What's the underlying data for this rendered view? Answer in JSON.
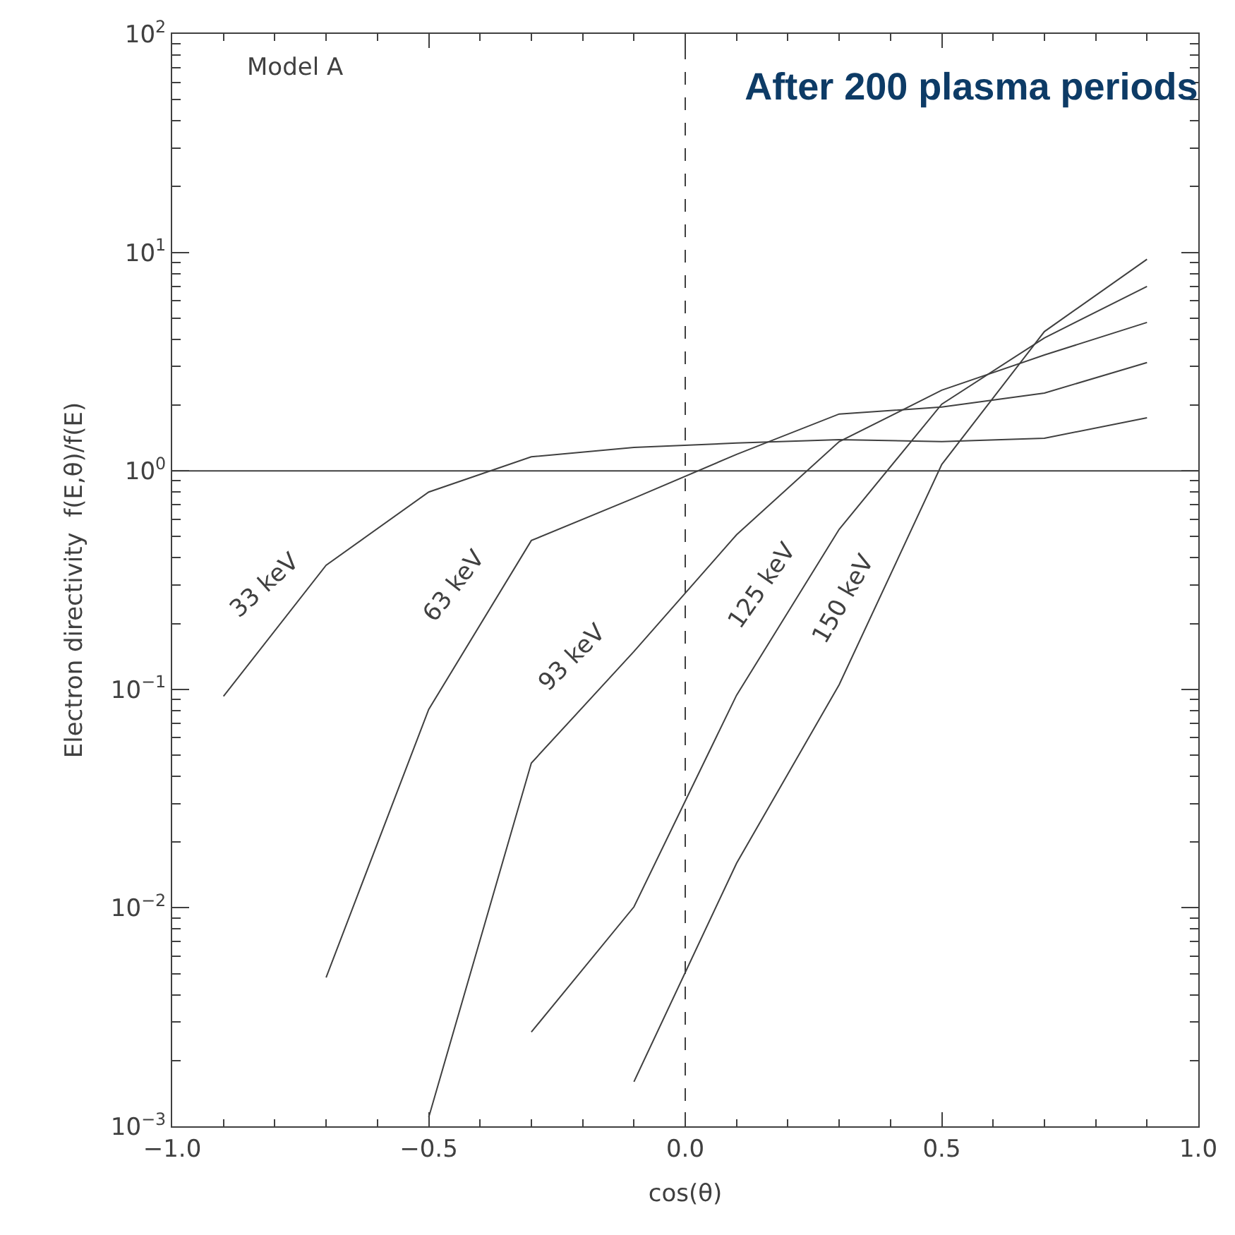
{
  "chart_data": {
    "type": "line",
    "title": "After 200 plasma periods",
    "xlabel": "cos(θ)",
    "ylabel": "Electron directivity  f(E,θ)/f(E)",
    "annotations": [
      "Model A"
    ],
    "x": [
      -0.9,
      -0.7,
      -0.5,
      -0.3,
      -0.1,
      0.1,
      0.3,
      0.5,
      0.7,
      0.9
    ],
    "series": [
      {
        "name": "33 keV",
        "color": "#404040",
        "values": [
          0.093,
          0.37,
          0.8,
          1.16,
          1.28,
          1.34,
          1.39,
          1.36,
          1.41,
          1.75
        ]
      },
      {
        "name": "63 keV",
        "color": "#404040",
        "values": [
          null,
          0.0048,
          0.081,
          0.48,
          0.75,
          1.19,
          1.82,
          1.96,
          2.27,
          3.13
        ]
      },
      {
        "name": "93 keV",
        "color": "#404040",
        "values": [
          null,
          null,
          0.0011,
          0.046,
          0.149,
          0.51,
          1.36,
          2.34,
          3.39,
          4.78
        ]
      },
      {
        "name": "125 keV",
        "color": "#404040",
        "values": [
          null,
          null,
          null,
          0.0027,
          0.0101,
          0.094,
          0.54,
          2.02,
          4.06,
          6.98
        ]
      },
      {
        "name": "150 keV",
        "color": "#404040",
        "values": [
          null,
          null,
          null,
          null,
          0.0016,
          0.016,
          0.105,
          1.07,
          4.34,
          9.3
        ]
      }
    ],
    "ref_lines": [
      {
        "axis": "y",
        "value": 1,
        "color": "#404040",
        "line_style": "solid"
      },
      {
        "axis": "x",
        "value": 0,
        "color": "#404040",
        "line_style": "dashed"
      }
    ],
    "log": "y",
    "grid": false,
    "legend": false,
    "marker": "none",
    "line_style": "solid",
    "xlim": [
      -1.0,
      1.0
    ],
    "xticks": [
      {
        "value": -1.0,
        "label": "−1.0"
      },
      {
        "value": -0.5,
        "label": "−0.5"
      },
      {
        "value": 0.0,
        "label": "0.0"
      },
      {
        "value": 0.5,
        "label": "0.5"
      },
      {
        "value": 1.0,
        "label": "1.0"
      }
    ],
    "ylim": [
      0.001,
      100
    ],
    "yticks": [
      {
        "value": 0.001,
        "label": "10$^{−3}$"
      },
      {
        "value": 0.01,
        "label": "10$^{−2}$"
      },
      {
        "value": 0.1,
        "label": "10$^{−1}$"
      },
      {
        "value": 1,
        "label": "10$^{0}$"
      },
      {
        "value": 10,
        "label": "10$^{1}$"
      },
      {
        "value": 100,
        "label": "10$^{2}$"
      }
    ]
  }
}
